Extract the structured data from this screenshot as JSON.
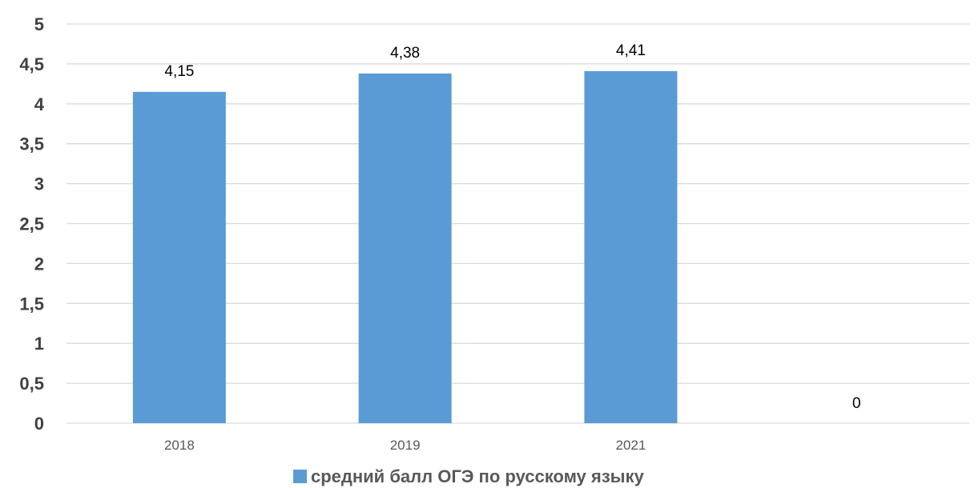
{
  "chart_data": {
    "type": "bar",
    "categories": [
      "2018",
      "2019",
      "2021",
      ""
    ],
    "series": [
      {
        "name": "средний балл ОГЭ по русскому языку",
        "values": [
          4.15,
          4.38,
          4.41,
          0
        ],
        "data_labels": [
          "4,15",
          "4,38",
          "4,41",
          "0"
        ],
        "color": "#5B9BD5"
      }
    ],
    "title": "",
    "xlabel": "",
    "ylabel": "",
    "ylim": [
      0,
      5
    ],
    "yticks": [
      0,
      0.5,
      1,
      1.5,
      2,
      2.5,
      3,
      3.5,
      4,
      4.5,
      5
    ],
    "ytick_labels": [
      "0",
      "0,5",
      "1",
      "1,5",
      "2",
      "2,5",
      "3",
      "3,5",
      "4",
      "4,5",
      "5"
    ],
    "grid": true,
    "legend_position": "bottom",
    "gridline_color": "#D9D9D9"
  }
}
